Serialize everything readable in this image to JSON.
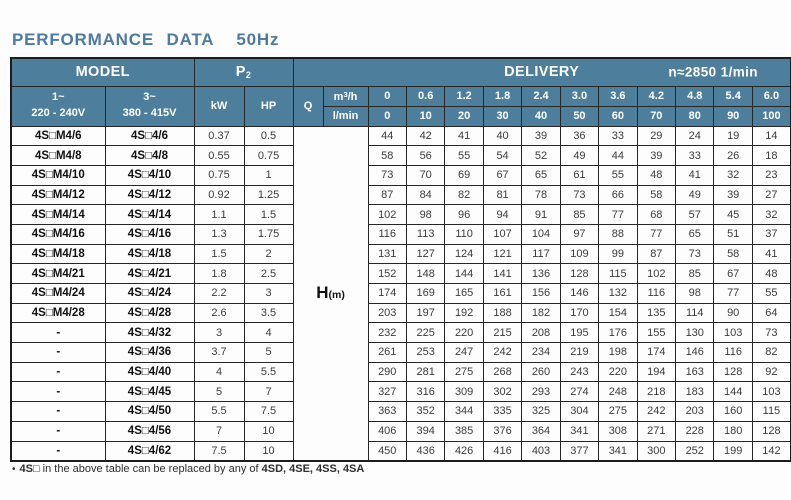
{
  "page": {
    "title": "PERFORMANCE  DATA",
    "frequency": "50Hz"
  },
  "table": {
    "headers": {
      "model": "MODEL",
      "p2_base": "P",
      "p2_sub": "2",
      "delivery": "DELIVERY",
      "speed": "n≈2850 1/min",
      "phase1_line1": "1~",
      "phase1_line2": "220 - 240V",
      "phase3_line1": "3~",
      "phase3_line2": "380 - 415V",
      "kw": "kW",
      "hp": "HP",
      "q": "Q",
      "m3h_base": "m",
      "m3h_sup": "3",
      "m3h_rest": "/h",
      "lmin": "l/min",
      "head_label": "H",
      "head_unit": "(m)"
    },
    "flow_m3h": [
      "0",
      "0.6",
      "1.2",
      "1.8",
      "2.4",
      "3.0",
      "3.6",
      "4.2",
      "4.8",
      "5.4",
      "6.0"
    ],
    "flow_lmin": [
      "0",
      "10",
      "20",
      "30",
      "40",
      "50",
      "60",
      "70",
      "80",
      "90",
      "100"
    ],
    "rows": [
      {
        "model_1ph": "4S□M4/6",
        "model_3ph": "4S□4/6",
        "kw": "0.37",
        "hp": "0.5",
        "head_m": [
          44,
          42,
          41,
          40,
          39,
          36,
          33,
          29,
          24,
          19,
          14
        ]
      },
      {
        "model_1ph": "4S□M4/8",
        "model_3ph": "4S□4/8",
        "kw": "0.55",
        "hp": "0.75",
        "head_m": [
          58,
          56,
          55,
          54,
          52,
          49,
          44,
          39,
          33,
          26,
          18
        ]
      },
      {
        "model_1ph": "4S□M4/10",
        "model_3ph": "4S□4/10",
        "kw": "0.75",
        "hp": "1",
        "head_m": [
          73,
          70,
          69,
          67,
          65,
          61,
          55,
          48,
          41,
          32,
          23
        ]
      },
      {
        "model_1ph": "4S□M4/12",
        "model_3ph": "4S□4/12",
        "kw": "0.92",
        "hp": "1.25",
        "head_m": [
          87,
          84,
          82,
          81,
          78,
          73,
          66,
          58,
          49,
          39,
          27
        ]
      },
      {
        "model_1ph": "4S□M4/14",
        "model_3ph": "4S□4/14",
        "kw": "1.1",
        "hp": "1.5",
        "head_m": [
          102,
          98,
          96,
          94,
          91,
          85,
          77,
          68,
          57,
          45,
          32
        ]
      },
      {
        "model_1ph": "4S□M4/16",
        "model_3ph": "4S□4/16",
        "kw": "1.3",
        "hp": "1.75",
        "head_m": [
          116,
          113,
          110,
          107,
          104,
          97,
          88,
          77,
          65,
          51,
          37
        ]
      },
      {
        "model_1ph": "4S□M4/18",
        "model_3ph": "4S□4/18",
        "kw": "1.5",
        "hp": "2",
        "head_m": [
          131,
          127,
          124,
          121,
          117,
          109,
          99,
          87,
          73,
          58,
          41
        ]
      },
      {
        "model_1ph": "4S□M4/21",
        "model_3ph": "4S□4/21",
        "kw": "1.8",
        "hp": "2.5",
        "head_m": [
          152,
          148,
          144,
          141,
          136,
          128,
          115,
          102,
          85,
          67,
          48
        ]
      },
      {
        "model_1ph": "4S□M4/24",
        "model_3ph": "4S□4/24",
        "kw": "2.2",
        "hp": "3",
        "head_m": [
          174,
          169,
          165,
          161,
          156,
          146,
          132,
          116,
          98,
          77,
          55
        ]
      },
      {
        "model_1ph": "4S□M4/28",
        "model_3ph": "4S□4/28",
        "kw": "2.6",
        "hp": "3.5",
        "head_m": [
          203,
          197,
          192,
          188,
          182,
          170,
          154,
          135,
          114,
          90,
          64
        ]
      },
      {
        "model_1ph": "-",
        "model_3ph": "4S□4/32",
        "kw": "3",
        "hp": "4",
        "head_m": [
          232,
          225,
          220,
          215,
          208,
          195,
          176,
          155,
          130,
          103,
          73
        ]
      },
      {
        "model_1ph": "-",
        "model_3ph": "4S□4/36",
        "kw": "3.7",
        "hp": "5",
        "head_m": [
          261,
          253,
          247,
          242,
          234,
          219,
          198,
          174,
          146,
          116,
          82
        ]
      },
      {
        "model_1ph": "-",
        "model_3ph": "4S□4/40",
        "kw": "4",
        "hp": "5.5",
        "head_m": [
          290,
          281,
          275,
          268,
          260,
          243,
          220,
          194,
          163,
          128,
          92
        ]
      },
      {
        "model_1ph": "-",
        "model_3ph": "4S□4/45",
        "kw": "5",
        "hp": "7",
        "head_m": [
          327,
          316,
          309,
          302,
          293,
          274,
          248,
          218,
          183,
          144,
          103
        ]
      },
      {
        "model_1ph": "-",
        "model_3ph": "4S□4/50",
        "kw": "5.5",
        "hp": "7.5",
        "head_m": [
          363,
          352,
          344,
          335,
          325,
          304,
          275,
          242,
          203,
          160,
          115
        ]
      },
      {
        "model_1ph": "-",
        "model_3ph": "4S□4/56",
        "kw": "7",
        "hp": "10",
        "head_m": [
          406,
          394,
          385,
          376,
          364,
          341,
          308,
          271,
          228,
          180,
          128
        ]
      },
      {
        "model_1ph": "-",
        "model_3ph": "4S□4/62",
        "kw": "7.5",
        "hp": "10",
        "head_m": [
          450,
          436,
          426,
          416,
          403,
          377,
          341,
          300,
          252,
          199,
          142
        ]
      }
    ]
  },
  "footnote": {
    "bullet": "•",
    "bold1": "4S□",
    "text": " in the above table can be replaced by any of ",
    "bold2": "4SD, 4SE, 4SS, 4SA"
  },
  "colors": {
    "header_teal": "#4d7f9c",
    "title_blue": "#4c7aa2",
    "border": "#262626"
  }
}
